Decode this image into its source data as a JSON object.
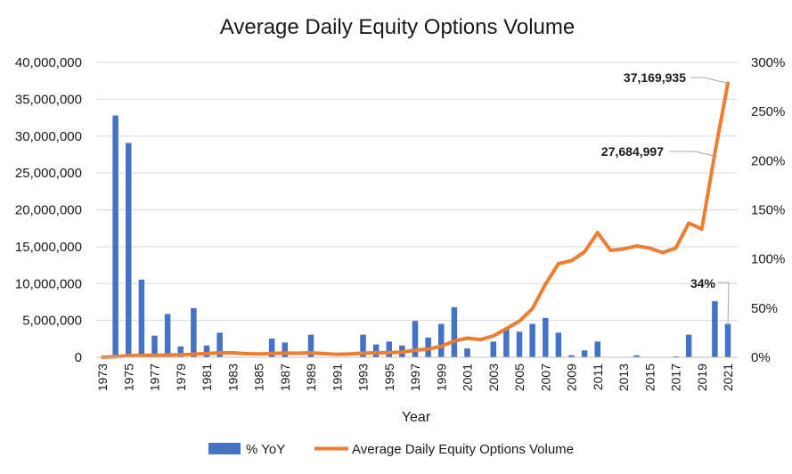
{
  "chart_data": {
    "type": "bar+line",
    "title": "Average Daily Equity Options Volume",
    "xlabel": "Year",
    "ylabel_left": "",
    "ylabel_right": "",
    "x": [
      1973,
      1974,
      1975,
      1976,
      1977,
      1978,
      1979,
      1980,
      1981,
      1982,
      1983,
      1984,
      1985,
      1986,
      1987,
      1988,
      1989,
      1990,
      1991,
      1992,
      1993,
      1994,
      1995,
      1996,
      1997,
      1998,
      1999,
      2000,
      2001,
      2002,
      2003,
      2004,
      2005,
      2006,
      2007,
      2008,
      2009,
      2010,
      2011,
      2012,
      2013,
      2014,
      2015,
      2016,
      2017,
      2018,
      2019,
      2020,
      2021
    ],
    "x_tick_labels": [
      "1973",
      "1975",
      "1977",
      "1979",
      "1981",
      "1983",
      "1985",
      "1987",
      "1989",
      "1991",
      "1993",
      "1995",
      "1997",
      "1999",
      "2001",
      "2003",
      "2005",
      "2007",
      "2009",
      "2011",
      "2013",
      "2015",
      "2017",
      "2019",
      "2021"
    ],
    "left_axis": {
      "ylim": [
        0,
        40000000
      ],
      "ticks": [
        "0",
        "5,000,000",
        "10,000,000",
        "15,000,000",
        "20,000,000",
        "25,000,000",
        "30,000,000",
        "35,000,000",
        "40,000,000"
      ]
    },
    "right_axis": {
      "ylim": [
        0,
        300
      ],
      "ticks": [
        "0%",
        "50%",
        "100%",
        "150%",
        "200%",
        "250%",
        "300%"
      ]
    },
    "series": [
      {
        "name": "% YoY",
        "type": "bar",
        "axis": "right",
        "color": "#4472C4",
        "values": [
          null,
          246,
          218,
          79,
          22,
          44,
          11,
          50,
          12,
          25,
          null,
          null,
          null,
          19,
          15,
          null,
          23,
          null,
          null,
          null,
          23,
          13,
          16,
          12,
          37,
          20,
          34,
          51,
          9,
          null,
          16,
          29,
          26,
          34,
          40,
          25,
          2,
          7,
          16,
          null,
          null,
          2,
          null,
          null,
          1,
          23,
          null,
          57,
          34
        ]
      },
      {
        "name": "Average Daily Equity Options Volume",
        "type": "line",
        "axis": "left",
        "color": "#ED7D31",
        "values": [
          20000,
          70000,
          220000,
          250000,
          250000,
          310000,
          340000,
          420000,
          500000,
          600000,
          600000,
          500000,
          450000,
          520000,
          580000,
          550000,
          600000,
          500000,
          400000,
          450000,
          560000,
          620000,
          640000,
          700000,
          950000,
          1100000,
          1500000,
          2200000,
          2600000,
          2400000,
          2900000,
          3900000,
          4900000,
          6600000,
          9900000,
          12700000,
          13100000,
          14300000,
          16900000,
          14500000,
          14700000,
          15100000,
          14800000,
          14200000,
          14800000,
          18200000,
          17400000,
          27684997,
          37169935
        ]
      }
    ],
    "annotations": [
      "37,169,935",
      "27,684,997",
      "34%"
    ],
    "legend_position": "bottom",
    "grid": true
  }
}
